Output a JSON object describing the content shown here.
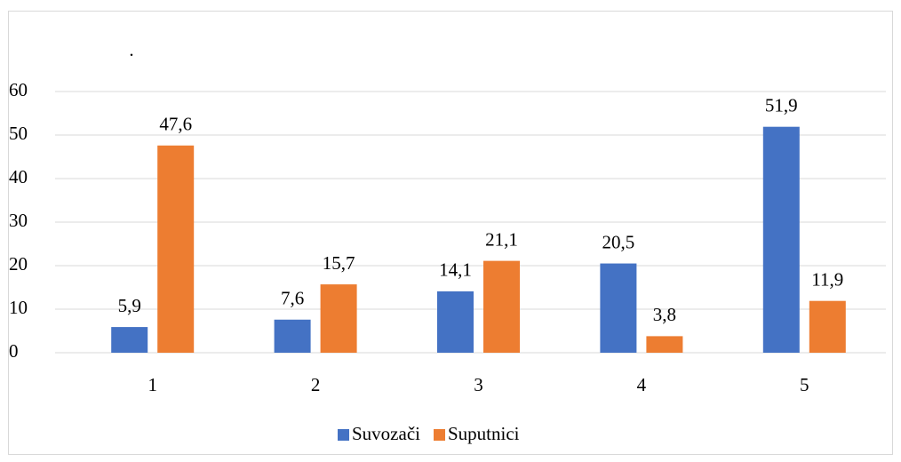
{
  "chart_data": {
    "type": "bar",
    "title": ".",
    "categories": [
      "1",
      "2",
      "3",
      "4",
      "5"
    ],
    "series": [
      {
        "name": "Suvozači",
        "color": "#4472c4",
        "values": [
          5.9,
          7.6,
          14.1,
          20.5,
          51.9
        ],
        "value_labels": [
          "5,9",
          "7,6",
          "14,1",
          "20,5",
          "51,9"
        ]
      },
      {
        "name": "Suputnici",
        "color": "#ed7d31",
        "values": [
          47.6,
          15.7,
          21.1,
          3.8,
          11.9
        ],
        "value_labels": [
          "47,6",
          "15,7",
          "21,1",
          "3,8",
          "11,9"
        ]
      }
    ],
    "ylim": [
      0,
      60
    ],
    "yticks": [
      0,
      10,
      20,
      30,
      40,
      50,
      60
    ],
    "grid": true,
    "legend": "bottom"
  }
}
